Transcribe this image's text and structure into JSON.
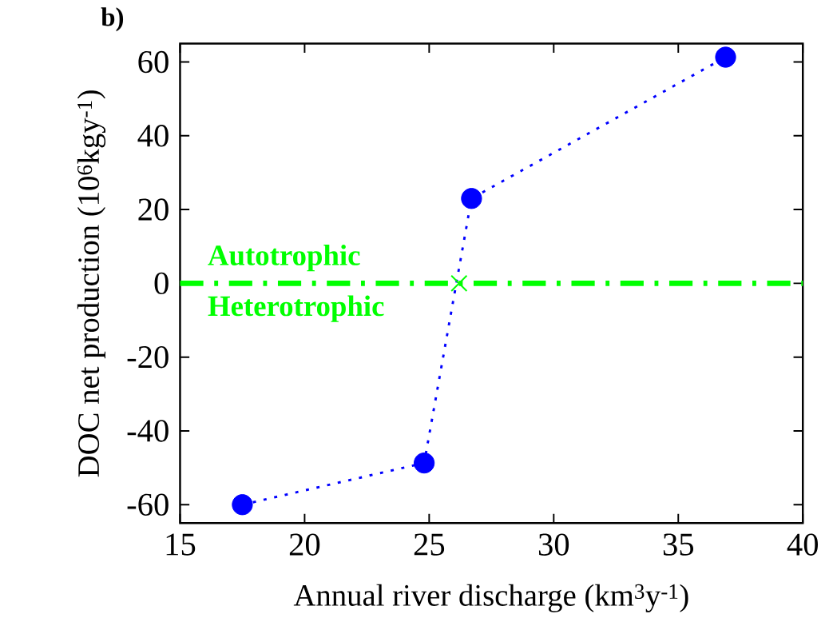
{
  "chart_data": {
    "type": "line",
    "xlabel": "Annual river discharge (km$^{3}$y$^{-1}$)",
    "ylabel": "DOC net production (10$^{6}$kgy$^{-1}$)",
    "xlim": [
      15,
      40
    ],
    "xticks": [
      15,
      20,
      25,
      30,
      35,
      40
    ],
    "ylim": [
      -65,
      65
    ],
    "yticks": [
      -60,
      -40,
      -20,
      0,
      20,
      40,
      60
    ],
    "series": [
      {
        "color": "#0000ff",
        "marker": "circle",
        "line_style": "dotted",
        "x": [
          17.5,
          24.8,
          26.7,
          36.9
        ],
        "values": [
          -60,
          -48.7,
          23,
          61.3
        ]
      },
      {
        "type": "scatter",
        "color": "#00ff00",
        "marker": "cross",
        "x": [
          26.2
        ],
        "values": [
          0
        ]
      }
    ],
    "ref_lines": [
      {
        "axis": "y",
        "value": 0,
        "color": "#00ff00",
        "line_style": "dashdot"
      }
    ],
    "annotations": [
      "b)",
      "Autotrophic",
      "Heterotrophic"
    ]
  }
}
